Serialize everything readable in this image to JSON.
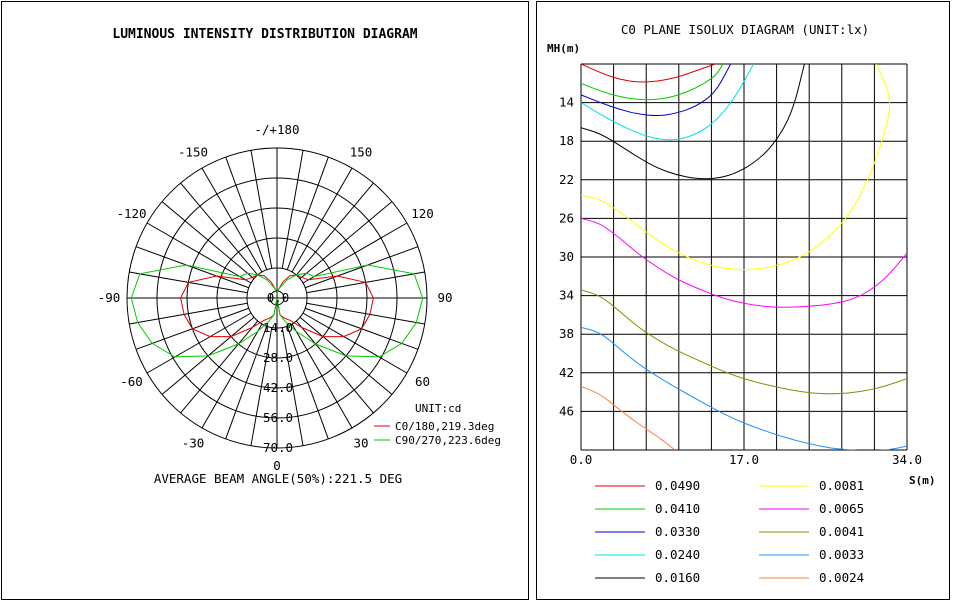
{
  "polar": {
    "title": "LUMINOUS INTENSITY DISTRIBUTION DIAGRAM",
    "angle_labels": [
      "-/+180",
      "150",
      "120",
      "90",
      "60",
      "30",
      "0",
      "-30",
      "-60",
      "-90",
      "-120",
      "-150"
    ],
    "radial_labels": [
      "0.0",
      "14.0",
      "28.0",
      "42.0",
      "56.0",
      "70.0"
    ],
    "unit": "UNIT:cd",
    "legend": [
      {
        "label": "C0/180,219.3deg",
        "color": "#e00000"
      },
      {
        "label": "C90/270,223.6deg",
        "color": "#00cc00"
      }
    ],
    "beam_angle": "AVERAGE BEAM ANGLE(50%):221.5 DEG"
  },
  "isolux": {
    "title": "C0 PLANE ISOLUX DIAGRAM (UNIT:lx)",
    "y_axis_label": "MH(m)",
    "x_axis_label": "S(m)",
    "y_ticks": [
      "14",
      "18",
      "22",
      "26",
      "30",
      "34",
      "38",
      "42",
      "46"
    ],
    "x_ticks": [
      "0.0",
      "17.0",
      "34.0"
    ],
    "legend": [
      {
        "value": "0.0490",
        "color": "#e00000"
      },
      {
        "value": "0.0410",
        "color": "#00cc00"
      },
      {
        "value": "0.0330",
        "color": "#0000cc"
      },
      {
        "value": "0.0240",
        "color": "#00e0e0"
      },
      {
        "value": "0.0160",
        "color": "#000000"
      },
      {
        "value": "0.0081",
        "color": "#ffff00"
      },
      {
        "value": "0.0065",
        "color": "#ff00ff"
      },
      {
        "value": "0.0041",
        "color": "#8c8c00"
      },
      {
        "value": "0.0033",
        "color": "#1e90ff"
      },
      {
        "value": "0.0024",
        "color": "#ff8040"
      }
    ]
  },
  "chart_data": [
    {
      "type": "polar",
      "title": "LUMINOUS INTENSITY DISTRIBUTION DIAGRAM",
      "unit": "cd",
      "r_range": [
        0,
        70
      ],
      "r_ticks": [
        0,
        14,
        28,
        42,
        56,
        70
      ],
      "grid": true,
      "legend_position": "bottom-right",
      "series": [
        {
          "name": "C0/180,219.3deg",
          "color": "#e00000",
          "angles": [
            -180,
            -170,
            -160,
            -150,
            -140,
            -130,
            -120,
            -110,
            -100,
            -90,
            -80,
            -70,
            -60,
            -50,
            -40,
            -30,
            -20,
            -10,
            0,
            10,
            20,
            30,
            40,
            50,
            60,
            70,
            80,
            90,
            100,
            110,
            120,
            130,
            140,
            150,
            160,
            170,
            180
          ],
          "values": [
            2,
            4,
            8,
            12,
            14,
            15,
            17,
            30,
            42,
            45,
            44,
            42,
            36,
            28,
            18,
            12,
            10,
            8,
            0,
            8,
            10,
            12,
            18,
            28,
            36,
            42,
            44,
            45,
            42,
            30,
            17,
            15,
            14,
            12,
            8,
            4,
            2
          ]
        },
        {
          "name": "C90/270,223.6deg",
          "color": "#00cc00",
          "angles": [
            -180,
            -170,
            -160,
            -150,
            -140,
            -130,
            -120,
            -110,
            -100,
            -90,
            -80,
            -70,
            -60,
            -50,
            -40,
            -30,
            -20,
            -10,
            0,
            10,
            20,
            30,
            40,
            50,
            60,
            70,
            80,
            90,
            100,
            110,
            120,
            130,
            140,
            150,
            160,
            170,
            180
          ],
          "values": [
            2,
            4,
            6,
            10,
            14,
            18,
            20,
            45,
            65,
            68,
            66,
            62,
            55,
            42,
            28,
            18,
            12,
            8,
            0,
            8,
            12,
            18,
            28,
            42,
            55,
            62,
            66,
            68,
            65,
            45,
            20,
            18,
            14,
            10,
            6,
            4,
            2
          ]
        }
      ],
      "annotation": "AVERAGE BEAM ANGLE(50%):221.5 DEG"
    },
    {
      "type": "contour",
      "title": "C0 PLANE ISOLUX DIAGRAM (UNIT:lx)",
      "xlabel": "S(m)",
      "ylabel": "MH(m)",
      "xlim": [
        0,
        34
      ],
      "ylim": [
        10,
        50
      ],
      "grid": true,
      "series": [
        {
          "name": "0.0490",
          "color": "#e00000",
          "x": [
            0,
            2,
            4,
            6,
            8,
            10,
            12,
            14
          ],
          "y": [
            10,
            10.9,
            11.6,
            11.9,
            11.8,
            11.4,
            10.7,
            10
          ]
        },
        {
          "name": "0.0410",
          "color": "#00cc00",
          "x": [
            0,
            2,
            4,
            6,
            8,
            10,
            12,
            14,
            14.8
          ],
          "y": [
            12,
            12.8,
            13.4,
            13.7,
            13.7,
            13.3,
            12.5,
            11.3,
            10
          ]
        },
        {
          "name": "0.0330",
          "color": "#0000cc",
          "x": [
            0,
            2,
            4,
            6,
            8,
            10,
            12,
            14,
            15.6
          ],
          "y": [
            13.2,
            14,
            14.7,
            15.2,
            15.4,
            15.1,
            14.4,
            13,
            10
          ]
        },
        {
          "name": "0.0240",
          "color": "#00e0e0",
          "x": [
            0,
            2,
            4,
            6,
            8,
            10,
            12,
            14,
            16,
            18
          ],
          "y": [
            14,
            15.2,
            16.3,
            17.2,
            17.8,
            17.9,
            17.3,
            16,
            13.6,
            10
          ]
        },
        {
          "name": "0.0160",
          "color": "#000000",
          "x": [
            0,
            2,
            4,
            6,
            8,
            10,
            12,
            14,
            16,
            18,
            20,
            22,
            23.3
          ],
          "y": [
            16.6,
            17.2,
            18.4,
            19.7,
            20.8,
            21.5,
            21.9,
            21.9,
            21.4,
            20.3,
            18.5,
            15.2,
            10
          ]
        },
        {
          "name": "0.0081",
          "color": "#ffff00",
          "x": [
            0,
            2,
            4,
            6,
            8,
            10,
            12,
            14,
            16,
            18,
            20,
            22,
            24,
            26,
            28,
            30,
            31.5,
            32.5,
            30.8
          ],
          "y": [
            23.6,
            24,
            25.3,
            26.8,
            28.3,
            29.5,
            30.4,
            31,
            31.3,
            31.3,
            31,
            30.4,
            29.4,
            27.8,
            25.6,
            22,
            17.7,
            13.8,
            10
          ]
        },
        {
          "name": "0.0065",
          "color": "#ff00ff",
          "x": [
            0,
            2,
            4,
            6,
            8,
            10,
            12,
            14,
            16,
            18,
            20,
            22,
            24,
            26,
            28,
            30,
            32,
            34
          ],
          "y": [
            26,
            26.5,
            28,
            29.7,
            31.1,
            32.3,
            33.2,
            34,
            34.6,
            35,
            35.2,
            35.2,
            35.1,
            34.9,
            34.5,
            33.6,
            32,
            29.6
          ]
        },
        {
          "name": "0.0041",
          "color": "#8c8c00",
          "x": [
            0,
            2,
            4,
            6,
            8,
            10,
            12,
            14,
            16,
            18,
            20,
            22,
            24,
            26,
            28,
            30,
            32,
            34
          ],
          "y": [
            33.4,
            34,
            35.6,
            37.3,
            38.6,
            39.7,
            40.6,
            41.5,
            42.3,
            42.9,
            43.4,
            43.8,
            44.1,
            44.2,
            44.1,
            43.8,
            43.3,
            42.6
          ]
        },
        {
          "name": "0.0033",
          "color": "#1e90ff",
          "x": [
            0,
            2,
            4,
            6,
            8,
            10,
            12,
            14,
            16,
            18,
            20,
            22,
            24,
            26,
            28,
            30,
            32,
            34
          ],
          "y": [
            37.3,
            37.8,
            39.5,
            41.1,
            42.4,
            43.6,
            44.7,
            45.8,
            46.8,
            47.6,
            48.3,
            48.9,
            49.4,
            49.8,
            50,
            50.1,
            50,
            49.6
          ]
        },
        {
          "name": "0.0024",
          "color": "#ff8040",
          "x": [
            0,
            2,
            4,
            6,
            8,
            9.8
          ],
          "y": [
            43.4,
            44.2,
            45.8,
            47.3,
            48.6,
            50
          ]
        }
      ]
    }
  ]
}
